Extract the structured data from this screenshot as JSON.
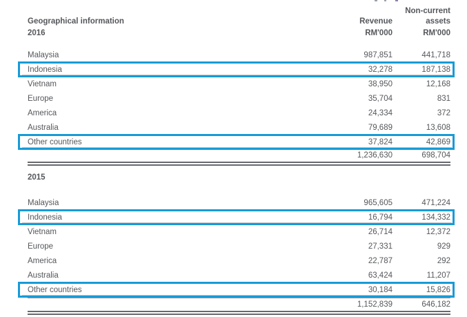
{
  "document": {
    "highlight_color": "#179bd7",
    "header": {
      "title": "Geographical information",
      "revenue_label": "Revenue",
      "non_current_line1": "Non-current",
      "non_current_line2": "assets",
      "revenue_unit": "RM'000",
      "assets_unit": "RM'000"
    },
    "sections": [
      {
        "year": "2016",
        "rows": [
          {
            "label": "Malaysia",
            "revenue": "987,851",
            "assets": "441,718",
            "highlighted": false
          },
          {
            "label": "Indonesia",
            "revenue": "32,278",
            "assets": "187,138",
            "highlighted": true
          },
          {
            "label": "Vietnam",
            "revenue": "38,950",
            "assets": "12,168",
            "highlighted": false
          },
          {
            "label": "Europe",
            "revenue": "35,704",
            "assets": "831",
            "highlighted": false
          },
          {
            "label": "America",
            "revenue": "24,334",
            "assets": "372",
            "highlighted": false
          },
          {
            "label": "Australia",
            "revenue": "79,689",
            "assets": "13,608",
            "highlighted": false
          },
          {
            "label": "Other countries",
            "revenue": "37,824",
            "assets": "42,869",
            "highlighted": true
          }
        ],
        "total": {
          "revenue": "1,236,630",
          "assets": "698,704"
        }
      },
      {
        "year": "2015",
        "rows": [
          {
            "label": "Malaysia",
            "revenue": "965,605",
            "assets": "471,224",
            "highlighted": false
          },
          {
            "label": "Indonesia",
            "revenue": "16,794",
            "assets": "134,332",
            "highlighted": true
          },
          {
            "label": "Vietnam",
            "revenue": "26,714",
            "assets": "12,372",
            "highlighted": false
          },
          {
            "label": "Europe",
            "revenue": "27,331",
            "assets": "929",
            "highlighted": false
          },
          {
            "label": "America",
            "revenue": "22,787",
            "assets": "292",
            "highlighted": false
          },
          {
            "label": "Australia",
            "revenue": "63,424",
            "assets": "11,207",
            "highlighted": false
          },
          {
            "label": "Other countries",
            "revenue": "30,184",
            "assets": "15,826",
            "highlighted": true
          }
        ],
        "total": {
          "revenue": "1,152,839",
          "assets": "646,182"
        }
      }
    ]
  }
}
